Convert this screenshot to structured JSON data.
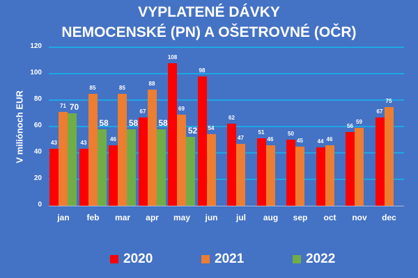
{
  "chart_data": {
    "type": "bar",
    "title": "VYPLATENÉ DÁVKY",
    "subtitle": "NEMOCENSKÉ (PN) A OŠETROVNÉ (OČR)",
    "xlabel": "",
    "ylabel": "V miliónoch EUR",
    "ylim": [
      0,
      120
    ],
    "yticks": [
      0,
      20,
      40,
      60,
      80,
      100,
      120
    ],
    "grid": true,
    "legend_position": "bottom",
    "categories": [
      "jan",
      "feb",
      "mar",
      "apr",
      "may",
      "jun",
      "jul",
      "aug",
      "sep",
      "oct",
      "nov",
      "dec"
    ],
    "series": [
      {
        "name": "2020",
        "color": "#ff0000",
        "values": [
          43,
          43,
          46,
          67,
          108,
          98,
          62,
          51,
          50,
          44,
          56,
          67
        ]
      },
      {
        "name": "2021",
        "color": "#ed7d31",
        "values": [
          71,
          85,
          85,
          88,
          69,
          54,
          47,
          46,
          45,
          46,
          59,
          75
        ]
      },
      {
        "name": "2022",
        "color": "#70ad47",
        "values": [
          70,
          58,
          58,
          58,
          52,
          null,
          null,
          null,
          null,
          null,
          null,
          null
        ]
      }
    ]
  }
}
